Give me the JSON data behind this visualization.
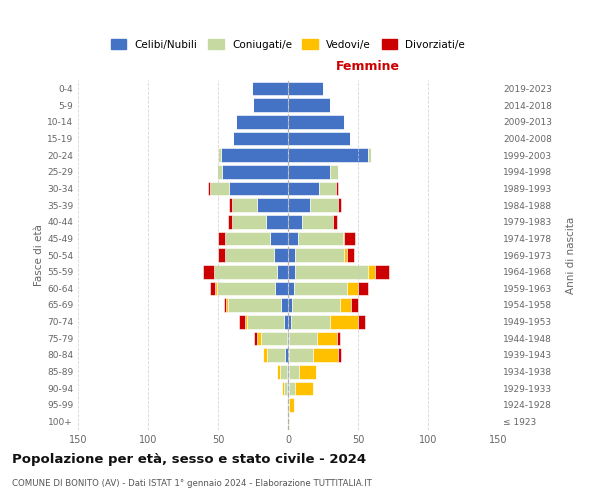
{
  "age_groups": [
    "100+",
    "95-99",
    "90-94",
    "85-89",
    "80-84",
    "75-79",
    "70-74",
    "65-69",
    "60-64",
    "55-59",
    "50-54",
    "45-49",
    "40-44",
    "35-39",
    "30-34",
    "25-29",
    "20-24",
    "15-19",
    "10-14",
    "5-9",
    "0-4"
  ],
  "birth_years": [
    "≤ 1923",
    "1924-1928",
    "1929-1933",
    "1934-1938",
    "1939-1943",
    "1944-1948",
    "1949-1953",
    "1954-1958",
    "1959-1963",
    "1964-1968",
    "1969-1973",
    "1974-1978",
    "1979-1983",
    "1984-1988",
    "1989-1993",
    "1994-1998",
    "1999-2003",
    "2004-2008",
    "2009-2013",
    "2014-2018",
    "2019-2023"
  ],
  "male": {
    "celibe": [
      0,
      0,
      1,
      1,
      2,
      1,
      3,
      5,
      9,
      8,
      10,
      13,
      16,
      22,
      42,
      47,
      48,
      39,
      37,
      25,
      26
    ],
    "coniugato": [
      0,
      1,
      2,
      5,
      13,
      18,
      26,
      38,
      42,
      45,
      35,
      32,
      24,
      18,
      14,
      4,
      2,
      0,
      0,
      0,
      0
    ],
    "vedovo": [
      0,
      0,
      1,
      2,
      3,
      3,
      2,
      1,
      1,
      0,
      0,
      0,
      0,
      0,
      0,
      0,
      0,
      0,
      0,
      0,
      0
    ],
    "divorziato": [
      0,
      0,
      0,
      0,
      0,
      2,
      4,
      2,
      4,
      8,
      5,
      5,
      3,
      2,
      1,
      0,
      0,
      0,
      0,
      0,
      0
    ]
  },
  "female": {
    "nubile": [
      0,
      0,
      1,
      1,
      1,
      1,
      2,
      3,
      4,
      5,
      5,
      7,
      10,
      16,
      22,
      30,
      57,
      44,
      40,
      30,
      25
    ],
    "coniugata": [
      0,
      1,
      4,
      7,
      17,
      20,
      28,
      34,
      38,
      52,
      35,
      32,
      22,
      20,
      12,
      6,
      2,
      0,
      0,
      0,
      0
    ],
    "vedova": [
      1,
      3,
      13,
      12,
      18,
      14,
      20,
      8,
      8,
      5,
      2,
      1,
      0,
      0,
      0,
      0,
      0,
      0,
      0,
      0,
      0
    ],
    "divorziata": [
      0,
      0,
      0,
      0,
      2,
      2,
      5,
      5,
      7,
      10,
      5,
      8,
      3,
      2,
      2,
      0,
      0,
      0,
      0,
      0,
      0
    ]
  },
  "colors": {
    "celibe": "#4472c4",
    "coniugato": "#c5d9a0",
    "vedovo": "#ffc000",
    "divorziato": "#cc0000"
  },
  "legend_labels": [
    "Celibi/Nubili",
    "Coniugati/e",
    "Vedovi/e",
    "Divorziati/e"
  ],
  "title": "Popolazione per età, sesso e stato civile - 2024",
  "subtitle": "COMUNE DI BONITO (AV) - Dati ISTAT 1° gennaio 2024 - Elaborazione TUTTITALIA.IT",
  "xlabel_right": "Femmine",
  "ylabel_left": "Fasce di età",
  "ylabel_right": "Anni di nascita",
  "xlim": 150,
  "bg_color": "#ffffff",
  "grid_color": "#cccccc"
}
